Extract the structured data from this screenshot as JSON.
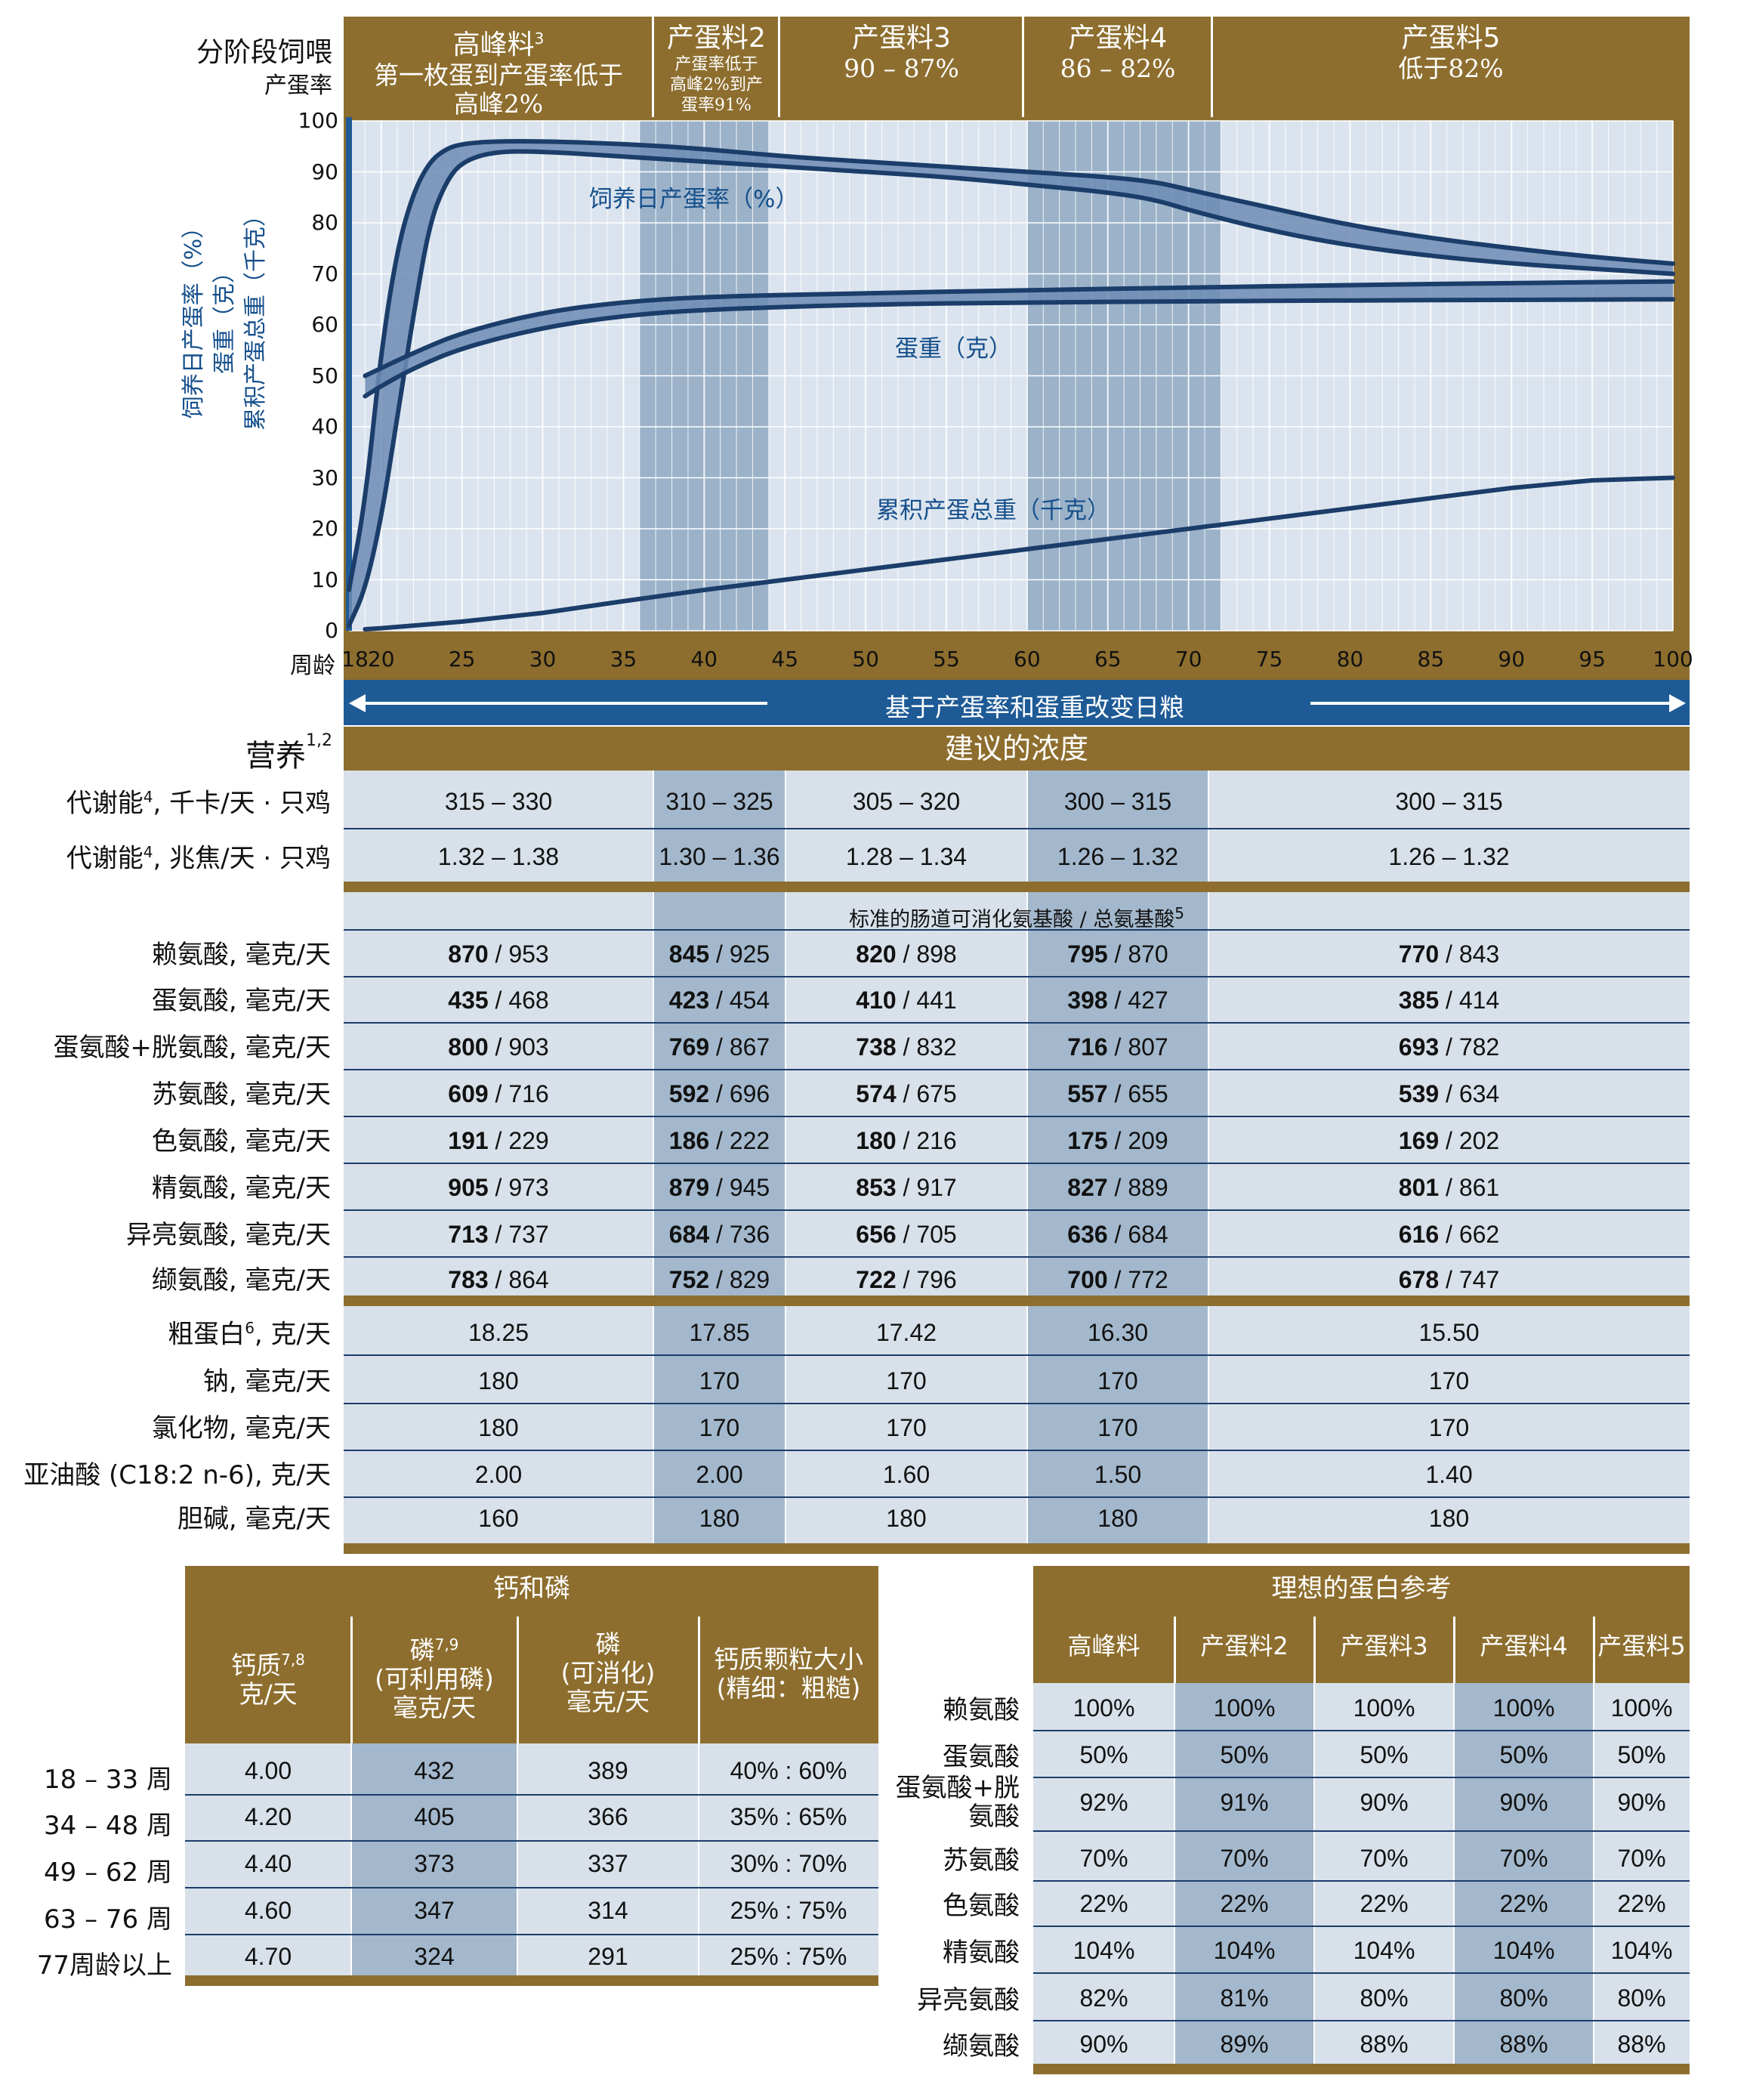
{
  "chart_header": {
    "left_title": "分阶段饲喂",
    "left_sub": "产蛋率",
    "stages": [
      {
        "title": "高峰料",
        "sup": "3",
        "sub": [
          "第一枚蛋到产蛋率低于",
          "高峰2%"
        ]
      },
      {
        "title": "产蛋料2",
        "sub": [
          "产蛋率低于",
          "高峰2%到产",
          "蛋率91%"
        ]
      },
      {
        "title": "产蛋料3",
        "sub": [
          "90 – 87%"
        ]
      },
      {
        "title": "产蛋料4",
        "sub": [
          "86 – 82%"
        ]
      },
      {
        "title": "产蛋料5",
        "sub": [
          "低于82%"
        ]
      }
    ]
  },
  "chart_data": {
    "type": "line",
    "x_label": "周龄",
    "x_ticks": [
      18,
      20,
      25,
      30,
      35,
      40,
      45,
      50,
      55,
      60,
      65,
      70,
      75,
      80,
      85,
      90,
      95,
      100
    ],
    "y_ticks": [
      0,
      10,
      20,
      30,
      40,
      50,
      60,
      70,
      80,
      90,
      100
    ],
    "xlim": [
      18,
      100
    ],
    "ylim": [
      0,
      100
    ],
    "ylabel": [
      "饲养日产蛋率（%）",
      "蛋重（克）",
      "累积产蛋总重（千克）"
    ],
    "shaded_ranges": [
      [
        36,
        44
      ],
      [
        60,
        72
      ]
    ],
    "series": [
      {
        "name": "饲养日产蛋率（%）",
        "upper": [
          [
            18,
            8
          ],
          [
            19,
            25
          ],
          [
            20,
            55
          ],
          [
            21,
            75
          ],
          [
            22,
            86
          ],
          [
            23,
            92
          ],
          [
            24,
            94.5
          ],
          [
            25,
            95.5
          ],
          [
            27,
            96
          ],
          [
            30,
            96
          ],
          [
            35,
            95.5
          ],
          [
            40,
            94.5
          ],
          [
            45,
            93
          ],
          [
            50,
            92
          ],
          [
            55,
            91
          ],
          [
            60,
            90
          ],
          [
            65,
            89
          ],
          [
            68,
            88
          ],
          [
            70,
            86.5
          ],
          [
            75,
            83
          ],
          [
            80,
            79.5
          ],
          [
            85,
            77
          ],
          [
            90,
            75
          ],
          [
            95,
            73.3
          ],
          [
            100,
            72
          ]
        ],
        "lower": [
          [
            18,
            1
          ],
          [
            19,
            8
          ],
          [
            20,
            22
          ],
          [
            21,
            42
          ],
          [
            22,
            62
          ],
          [
            23,
            80
          ],
          [
            24,
            88
          ],
          [
            25,
            92
          ],
          [
            27,
            94
          ],
          [
            30,
            94
          ],
          [
            35,
            93
          ],
          [
            40,
            92
          ],
          [
            45,
            91
          ],
          [
            50,
            90
          ],
          [
            55,
            89
          ],
          [
            60,
            87.5
          ],
          [
            65,
            86
          ],
          [
            68,
            84.5
          ],
          [
            70,
            82.5
          ],
          [
            75,
            78.5
          ],
          [
            80,
            75.5
          ],
          [
            85,
            73.5
          ],
          [
            90,
            72
          ],
          [
            95,
            71
          ],
          [
            100,
            70
          ]
        ]
      },
      {
        "name": "蛋重（克）",
        "upper": [
          [
            19,
            50
          ],
          [
            20,
            51.5
          ],
          [
            22,
            54.5
          ],
          [
            25,
            58.5
          ],
          [
            30,
            62.5
          ],
          [
            35,
            64.5
          ],
          [
            40,
            65.5
          ],
          [
            50,
            66.2
          ],
          [
            60,
            66.8
          ],
          [
            70,
            67.3
          ],
          [
            80,
            67.8
          ],
          [
            90,
            68.2
          ],
          [
            100,
            68.5
          ]
        ],
        "lower": [
          [
            19,
            46
          ],
          [
            20,
            48
          ],
          [
            22,
            51.5
          ],
          [
            25,
            55.5
          ],
          [
            30,
            59.5
          ],
          [
            35,
            61.8
          ],
          [
            40,
            63
          ],
          [
            50,
            64
          ],
          [
            60,
            64.4
          ],
          [
            70,
            64.6
          ],
          [
            80,
            64.8
          ],
          [
            90,
            64.9
          ],
          [
            100,
            65
          ]
        ]
      },
      {
        "name": "累积产蛋总重（千克）",
        "points": [
          [
            19,
            0.3
          ],
          [
            20,
            0.5
          ],
          [
            25,
            1.8
          ],
          [
            30,
            3.5
          ],
          [
            35,
            5.8
          ],
          [
            40,
            8
          ],
          [
            45,
            10
          ],
          [
            50,
            12
          ],
          [
            55,
            14
          ],
          [
            60,
            16
          ],
          [
            65,
            18
          ],
          [
            70,
            20
          ],
          [
            75,
            22
          ],
          [
            80,
            24
          ],
          [
            85,
            26
          ],
          [
            90,
            28
          ],
          [
            95,
            29.5
          ],
          [
            100,
            30
          ]
        ]
      }
    ],
    "arrow_label": "基于产蛋率和蛋重改变日粮"
  },
  "nutrition": {
    "title": "营养",
    "title_sup": "1,2",
    "header": "建议的浓度",
    "energy": [
      {
        "label": "代谢能",
        "sup": "4",
        "unit": ", 千卡/天 · 只鸡",
        "values": [
          "315 – 330",
          "310 – 325",
          "305 – 320",
          "300 – 315",
          "300 – 315"
        ]
      },
      {
        "label": "代谢能",
        "sup": "4",
        "unit": ", 兆焦/天 · 只鸡",
        "values": [
          "1.32 – 1.38",
          "1.30 – 1.36",
          "1.28 – 1.34",
          "1.26 – 1.32",
          "1.26 – 1.32"
        ]
      }
    ],
    "amino_header": "标准的肠道可消化氨基酸 / 总氨基酸",
    "amino_sup": "5",
    "amino": [
      {
        "label": "赖氨酸, 毫克/天",
        "values": [
          [
            "870",
            "953"
          ],
          [
            "845",
            "925"
          ],
          [
            "820",
            "898"
          ],
          [
            "795",
            "870"
          ],
          [
            "770",
            "843"
          ]
        ]
      },
      {
        "label": "蛋氨酸, 毫克/天",
        "values": [
          [
            "435",
            "468"
          ],
          [
            "423",
            "454"
          ],
          [
            "410",
            "441"
          ],
          [
            "398",
            "427"
          ],
          [
            "385",
            "414"
          ]
        ]
      },
      {
        "label": "蛋氨酸+胱氨酸, 毫克/天",
        "values": [
          [
            "800",
            "903"
          ],
          [
            "769",
            "867"
          ],
          [
            "738",
            "832"
          ],
          [
            "716",
            "807"
          ],
          [
            "693",
            "782"
          ]
        ]
      },
      {
        "label": "苏氨酸, 毫克/天",
        "values": [
          [
            "609",
            "716"
          ],
          [
            "592",
            "696"
          ],
          [
            "574",
            "675"
          ],
          [
            "557",
            "655"
          ],
          [
            "539",
            "634"
          ]
        ]
      },
      {
        "label": "色氨酸, 毫克/天",
        "values": [
          [
            "191",
            "229"
          ],
          [
            "186",
            "222"
          ],
          [
            "180",
            "216"
          ],
          [
            "175",
            "209"
          ],
          [
            "169",
            "202"
          ]
        ]
      },
      {
        "label": "精氨酸, 毫克/天",
        "values": [
          [
            "905",
            "973"
          ],
          [
            "879",
            "945"
          ],
          [
            "853",
            "917"
          ],
          [
            "827",
            "889"
          ],
          [
            "801",
            "861"
          ]
        ]
      },
      {
        "label": "异亮氨酸, 毫克/天",
        "values": [
          [
            "713",
            "737"
          ],
          [
            "684",
            "736"
          ],
          [
            "656",
            "705"
          ],
          [
            "636",
            "684"
          ],
          [
            "616",
            "662"
          ]
        ]
      },
      {
        "label": "缬氨酸, 毫克/天",
        "values": [
          [
            "783",
            "864"
          ],
          [
            "752",
            "829"
          ],
          [
            "722",
            "796"
          ],
          [
            "700",
            "772"
          ],
          [
            "678",
            "747"
          ]
        ]
      }
    ],
    "other": [
      {
        "label": "粗蛋白",
        "sup": "6",
        "unit": ", 克/天",
        "values": [
          "18.25",
          "17.85",
          "17.42",
          "16.30",
          "15.50"
        ]
      },
      {
        "label": "钠, 毫克/天",
        "sup": "",
        "unit": "",
        "values": [
          "180",
          "170",
          "170",
          "170",
          "170"
        ]
      },
      {
        "label": "氯化物, 毫克/天",
        "sup": "",
        "unit": "",
        "values": [
          "180",
          "170",
          "170",
          "170",
          "170"
        ]
      },
      {
        "label": "亚油酸 (C18:2 n-6), 克/天",
        "sup": "",
        "unit": "",
        "values": [
          "2.00",
          "2.00",
          "1.60",
          "1.50",
          "1.40"
        ]
      },
      {
        "label": "胆碱, 毫克/天",
        "sup": "",
        "unit": "",
        "values": [
          "160",
          "180",
          "180",
          "180",
          "180"
        ]
      }
    ]
  },
  "calcium": {
    "title": "钙和磷",
    "headers": [
      {
        "lines": [
          "钙质",
          "克/天"
        ],
        "sup": "7,8"
      },
      {
        "lines": [
          "磷",
          "(可利用磷)",
          "毫克/天"
        ],
        "sup": "7,9"
      },
      {
        "lines": [
          "磷",
          "(可消化)",
          "毫克/天"
        ],
        "sup": ""
      },
      {
        "lines": [
          "钙质颗粒大小",
          "(精细：粗糙)"
        ],
        "sup": ""
      }
    ],
    "rows": [
      {
        "label": "18 – 33 周",
        "values": [
          "4.00",
          "432",
          "389",
          "40% : 60%"
        ]
      },
      {
        "label": "34 – 48 周",
        "values": [
          "4.20",
          "405",
          "366",
          "35% : 65%"
        ]
      },
      {
        "label": "49 – 62 周",
        "values": [
          "4.40",
          "373",
          "337",
          "30% : 70%"
        ]
      },
      {
        "label": "63 – 76 周",
        "values": [
          "4.60",
          "347",
          "314",
          "25% : 75%"
        ]
      },
      {
        "label": "77周龄以上",
        "values": [
          "4.70",
          "324",
          "291",
          "25% : 75%"
        ]
      }
    ]
  },
  "ideal": {
    "title": "理想的蛋白参考",
    "headers": [
      "高峰料",
      "产蛋料2",
      "产蛋料3",
      "产蛋料4",
      "产蛋料5"
    ],
    "rows": [
      {
        "label": [
          "赖氨酸"
        ],
        "values": [
          "100%",
          "100%",
          "100%",
          "100%",
          "100%"
        ]
      },
      {
        "label": [
          "蛋氨酸"
        ],
        "values": [
          "50%",
          "50%",
          "50%",
          "50%",
          "50%"
        ]
      },
      {
        "label": [
          "蛋氨酸+胱",
          "氨酸"
        ],
        "values": [
          "92%",
          "91%",
          "90%",
          "90%",
          "90%"
        ]
      },
      {
        "label": [
          "苏氨酸"
        ],
        "values": [
          "70%",
          "70%",
          "70%",
          "70%",
          "70%"
        ]
      },
      {
        "label": [
          "色氨酸"
        ],
        "values": [
          "22%",
          "22%",
          "22%",
          "22%",
          "22%"
        ]
      },
      {
        "label": [
          "精氨酸"
        ],
        "values": [
          "104%",
          "104%",
          "104%",
          "104%",
          "104%"
        ]
      },
      {
        "label": [
          "异亮氨酸"
        ],
        "values": [
          "82%",
          "81%",
          "80%",
          "80%",
          "80%"
        ]
      },
      {
        "label": [
          "缬氨酸"
        ],
        "values": [
          "90%",
          "89%",
          "88%",
          "88%",
          "88%"
        ]
      }
    ]
  }
}
